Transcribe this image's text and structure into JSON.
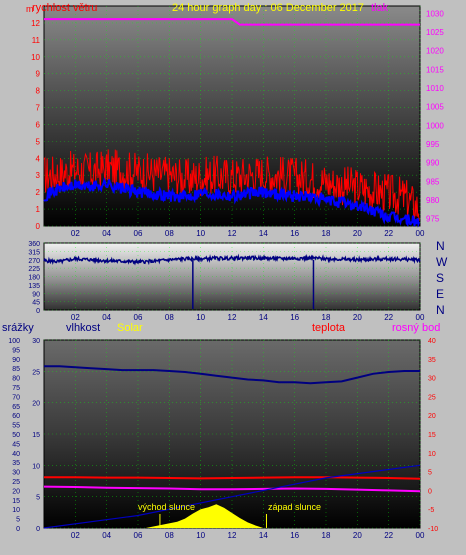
{
  "header": {
    "title": "24 hour graph day : 06 December 2017",
    "left_label": "rychlost větru",
    "right_label": "tlak",
    "title_color": "#ffff00",
    "left_color": "#ff0000",
    "right_color": "#ff00ff",
    "left_unit": "m"
  },
  "panel2": {
    "compass": [
      "N",
      "W",
      "S",
      "E",
      "N"
    ],
    "compass_color": "#000080"
  },
  "panel3": {
    "labels": {
      "rain": "srážky",
      "humidity": "vlhkost",
      "solar": "Solar",
      "temperature": "teplota",
      "dewpoint": "rosný bod"
    },
    "label_colors": {
      "rain": "#000080",
      "humidity": "#000080",
      "solar": "#ffff00",
      "temperature": "#ff0000",
      "dewpoint": "#ff00ff"
    },
    "annotations": {
      "sunrise": "východ slunce",
      "sunset": "západ slunce"
    }
  },
  "chart_data": [
    {
      "type": "line",
      "x_ticks": [
        "02",
        "04",
        "06",
        "08",
        "10",
        "12",
        "14",
        "16",
        "18",
        "20",
        "22",
        "00"
      ],
      "y_left": {
        "ticks": [
          0,
          1,
          2,
          3,
          4,
          5,
          6,
          7,
          8,
          9,
          10,
          11,
          12
        ],
        "range": [
          0,
          13
        ],
        "color": "#ff0000"
      },
      "y_right": {
        "ticks": [
          975,
          980,
          985,
          990,
          995,
          1000,
          1005,
          1010,
          1015,
          1020,
          1025,
          1030
        ],
        "range": [
          973,
          1032
        ],
        "color": "#ff00ff"
      },
      "series": [
        {
          "color": "#ff0000",
          "x": [
            0,
            1,
            2,
            3,
            4,
            5,
            6,
            7,
            8,
            9,
            10,
            11,
            12,
            13,
            14,
            15,
            16,
            17,
            18,
            19,
            20,
            21,
            22,
            23,
            24
          ],
          "y": [
            3.0,
            3.1,
            3.3,
            3.2,
            3.4,
            3.3,
            3.2,
            3.1,
            3.0,
            2.8,
            2.9,
            3.0,
            2.9,
            3.0,
            3.1,
            3.0,
            2.9,
            2.8,
            2.6,
            2.4,
            2.3,
            2.1,
            1.9,
            1.7,
            1.0
          ]
        },
        {
          "color": "#0000ff",
          "x": [
            0,
            1,
            2,
            3,
            4,
            5,
            6,
            7,
            8,
            9,
            10,
            11,
            12,
            13,
            14,
            15,
            16,
            17,
            18,
            19,
            20,
            21,
            22,
            23,
            24
          ],
          "y": [
            1.8,
            2.2,
            2.4,
            2.3,
            2.5,
            2.2,
            2.0,
            1.9,
            1.8,
            1.7,
            2.0,
            1.9,
            1.8,
            1.9,
            2.0,
            1.9,
            1.8,
            1.7,
            1.5,
            1.4,
            1.2,
            0.9,
            0.5,
            0.4,
            0.2
          ]
        },
        {
          "color": "#ff00ff",
          "axis": "right",
          "x": [
            0,
            0.5,
            12,
            12.5,
            24
          ],
          "y": [
            1028.5,
            1028.5,
            1028.5,
            1027.0,
            1027.0
          ]
        }
      ]
    },
    {
      "type": "line",
      "x_ticks": [
        "02",
        "04",
        "06",
        "08",
        "10",
        "12",
        "14",
        "16",
        "18",
        "20",
        "22",
        "00"
      ],
      "y": {
        "ticks": [
          0,
          45,
          90,
          135,
          180,
          225,
          270,
          315,
          360
        ],
        "range": [
          0,
          360
        ],
        "color": "#000080"
      },
      "series": [
        {
          "color": "#000080",
          "x": [
            0,
            1,
            2,
            3,
            4,
            5,
            6,
            7,
            8,
            9,
            10,
            11,
            12,
            13,
            14,
            15,
            16,
            17,
            18,
            19,
            20,
            21,
            22,
            23,
            24
          ],
          "y": [
            265,
            260,
            275,
            270,
            265,
            262,
            258,
            262,
            270,
            275,
            275,
            278,
            278,
            280,
            278,
            276,
            278,
            279,
            276,
            273,
            270,
            272,
            275,
            272,
            270
          ]
        }
      ]
    },
    {
      "type": "line",
      "x_ticks": [
        "02",
        "04",
        "06",
        "08",
        "10",
        "12",
        "14",
        "16",
        "18",
        "20",
        "22",
        "00"
      ],
      "y_left_outer": {
        "ticks": [
          0,
          5,
          10,
          15,
          20,
          25,
          30,
          35,
          40,
          45,
          50,
          55,
          60,
          65,
          70,
          75,
          80,
          85,
          90,
          95,
          100
        ],
        "range": [
          0,
          100
        ],
        "color": "#000080"
      },
      "y_left_inner": {
        "ticks": [
          0,
          5,
          10,
          15,
          20,
          25,
          30
        ],
        "range": [
          0,
          30
        ],
        "color": "#000080"
      },
      "y_right": {
        "ticks": [
          -10,
          -5,
          0,
          5,
          10,
          15,
          20,
          25,
          30,
          35,
          40
        ],
        "range": [
          -10,
          40
        ],
        "color": "#ff0000"
      },
      "series": [
        {
          "color": "#000080",
          "x": [
            0,
            1,
            2,
            3,
            4,
            5,
            6,
            7,
            8,
            9,
            10,
            11,
            12,
            13,
            14,
            15,
            16,
            17,
            18,
            19,
            20,
            21,
            22,
            23,
            24
          ],
          "y": [
            86,
            86,
            85.5,
            85,
            84.5,
            84,
            84,
            84,
            83.5,
            83,
            82,
            81,
            80,
            79,
            78.5,
            77.5,
            77.5,
            77,
            77.5,
            78,
            80,
            82,
            83,
            83.5,
            83.5
          ]
        },
        {
          "color": "#ff0000",
          "x": [
            0,
            2,
            4,
            6,
            8,
            10,
            12,
            14,
            16,
            18,
            20,
            22,
            24
          ],
          "y": [
            3.5,
            3.5,
            3.4,
            3.4,
            3.3,
            3.2,
            3.3,
            3.4,
            3.5,
            3.5,
            3.4,
            3.3,
            3.1
          ]
        },
        {
          "color": "#ff00ff",
          "x": [
            0,
            2,
            4,
            6,
            8,
            10,
            12,
            14,
            16,
            18,
            20,
            22,
            24
          ],
          "y": [
            1.0,
            0.9,
            0.7,
            0.6,
            0.5,
            0.3,
            0.3,
            0.4,
            0.5,
            0.4,
            0.2,
            0.0,
            -0.2
          ]
        },
        {
          "color": "#0000c0",
          "x": [
            0,
            6,
            12,
            18,
            24
          ],
          "y": [
            0,
            2,
            5,
            8,
            10
          ]
        },
        {
          "color": "#ffff00",
          "type": "area",
          "x": [
            6.5,
            7.5,
            8.5,
            9,
            9.5,
            10,
            10.5,
            11,
            11.5,
            12,
            12.5,
            13,
            13.5,
            14
          ],
          "y": [
            0,
            0.5,
            1.0,
            1.5,
            2.3,
            3.0,
            3.3,
            3.8,
            3.2,
            2.4,
            1.6,
            0.9,
            0.4,
            0
          ]
        }
      ]
    }
  ]
}
